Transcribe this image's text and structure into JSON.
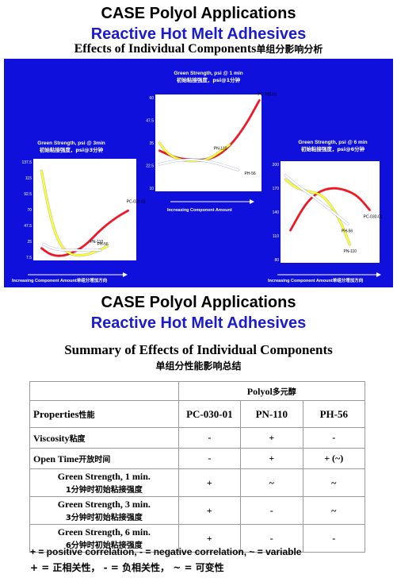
{
  "header": {
    "title": "CASE Polyol Applications",
    "subtitle": "Reactive Hot Melt Adhesives",
    "effects_en": "Effects of Individual  Components",
    "effects_cn": "单组分影响分析"
  },
  "colors": {
    "panel_bg": "#1010dd",
    "plot_bg": "#ffffff",
    "pc": "#ff1010",
    "pn": "#ffff20",
    "ph": "#ffffff"
  },
  "chart_data": [
    {
      "type": "line",
      "title": "Green Strength, psi @ 3min",
      "title_cn": "初始粘接强度，psi@3分钟",
      "xlabel": "Increasing Component Amount",
      "xlabel_cn": "单组分增加方向",
      "yticks": [
        "137.5",
        "115",
        "92.5",
        "70",
        "47.5",
        "25",
        "7.5"
      ],
      "series": [
        {
          "name": "PC-030-01",
          "color": "#ff1010",
          "points": [
            [
              0.08,
              0.12
            ],
            [
              0.16,
              0.06
            ],
            [
              0.25,
              0.04
            ],
            [
              0.35,
              0.06
            ],
            [
              0.5,
              0.14
            ],
            [
              0.65,
              0.3
            ],
            [
              0.8,
              0.42
            ],
            [
              0.92,
              0.49
            ]
          ]
        },
        {
          "name": "PN-110",
          "color": "#ffff20",
          "points": [
            [
              0.08,
              0.88
            ],
            [
              0.13,
              0.6
            ],
            [
              0.2,
              0.3
            ],
            [
              0.28,
              0.12
            ],
            [
              0.38,
              0.05
            ],
            [
              0.5,
              0.05
            ],
            [
              0.62,
              0.09
            ],
            [
              0.72,
              0.14
            ]
          ]
        },
        {
          "name": "PH-56",
          "color": "#ffffff",
          "points": [
            [
              0.1,
              0.16
            ],
            [
              0.2,
              0.11
            ],
            [
              0.32,
              0.1
            ],
            [
              0.45,
              0.1
            ],
            [
              0.55,
              0.1
            ],
            [
              0.65,
              0.1
            ]
          ]
        }
      ]
    },
    {
      "type": "line",
      "title": "Green Strength, psi @ 1 min",
      "title_cn": "初始粘接强度，psi@1分钟",
      "xlabel": "Increasing Component Amount",
      "xlabel_cn": "",
      "yticks": [
        "60",
        "47.5",
        "35",
        "22.5",
        "10"
      ],
      "series": [
        {
          "name": "PC-030-01",
          "color": "#ff1010",
          "points": [
            [
              0.04,
              0.42
            ],
            [
              0.2,
              0.34
            ],
            [
              0.4,
              0.32
            ],
            [
              0.55,
              0.34
            ],
            [
              0.7,
              0.46
            ],
            [
              0.85,
              0.68
            ],
            [
              0.98,
              0.94
            ]
          ]
        },
        {
          "name": "PN-110",
          "color": "#ffff20",
          "points": [
            [
              0.04,
              0.5
            ],
            [
              0.12,
              0.38
            ],
            [
              0.25,
              0.32
            ],
            [
              0.38,
              0.31
            ],
            [
              0.5,
              0.33
            ],
            [
              0.6,
              0.4
            ],
            [
              0.7,
              0.48
            ]
          ]
        },
        {
          "name": "PH-56",
          "color": "#ffffff",
          "points": [
            [
              0.04,
              0.28
            ],
            [
              0.2,
              0.32
            ],
            [
              0.38,
              0.33
            ],
            [
              0.55,
              0.3
            ],
            [
              0.7,
              0.25
            ],
            [
              0.78,
              0.22
            ]
          ]
        }
      ]
    },
    {
      "type": "line",
      "title": "Green Strength, psi @ 6 min",
      "title_cn": "初始粘接强度，psi@6分钟",
      "xlabel": "Increasing Component Amount",
      "xlabel_cn": "单组分增加方向",
      "yticks": [
        "200",
        "170",
        "140",
        "110",
        "80"
      ],
      "series": [
        {
          "name": "PC-030-01",
          "color": "#ff1010",
          "points": [
            [
              0.1,
              0.32
            ],
            [
              0.25,
              0.58
            ],
            [
              0.38,
              0.7
            ],
            [
              0.52,
              0.74
            ],
            [
              0.65,
              0.72
            ],
            [
              0.78,
              0.66
            ],
            [
              0.9,
              0.52
            ]
          ]
        },
        {
          "name": "PN-110",
          "color": "#ffff20",
          "points": [
            [
              0.05,
              0.82
            ],
            [
              0.15,
              0.74
            ],
            [
              0.28,
              0.7
            ],
            [
              0.4,
              0.68
            ],
            [
              0.5,
              0.58
            ],
            [
              0.6,
              0.42
            ],
            [
              0.7,
              0.18
            ]
          ]
        },
        {
          "name": "PH-56",
          "color": "#ffffff",
          "points": [
            [
              0.05,
              0.86
            ],
            [
              0.18,
              0.75
            ],
            [
              0.32,
              0.66
            ],
            [
              0.45,
              0.56
            ],
            [
              0.58,
              0.46
            ],
            [
              0.68,
              0.38
            ]
          ]
        }
      ]
    }
  ],
  "summary": {
    "title": "CASE Polyol Applications",
    "subtitle": "Reactive Hot Melt Adhesives",
    "heading": "Summary  of Effects of Individual  Components",
    "heading_cn": "单组分性能影响总结",
    "table": {
      "polyol_en": "Polyol",
      "polyol_cn": "多元醇",
      "properties_en": "Properties",
      "properties_cn": "性能",
      "cols": [
        "PC-030-01",
        "PN-110",
        "PH-56"
      ],
      "rows": [
        {
          "en": "Viscosity",
          "cn": "粘度",
          "vals": [
            "-",
            "+",
            "-"
          ]
        },
        {
          "en": "Open  Time",
          "cn": "开放时间",
          "vals": [
            "-",
            "+",
            "+ (~)"
          ]
        },
        {
          "en": "Green Strength, 1 min.",
          "cn": "1分钟时初始粘接强度",
          "vals": [
            "+",
            "~",
            "~"
          ]
        },
        {
          "en": "Green Strength, 3 min.",
          "cn": "3分钟时初始粘接强度",
          "vals": [
            "+",
            "-",
            "~"
          ]
        },
        {
          "en": "Green Strength, 6 min.",
          "cn": "6分钟时初始粘接强度",
          "vals": [
            "+",
            "-",
            "-"
          ]
        }
      ]
    },
    "legend_en": "+ = positive correlation, - = negative correlation, ~ = variable",
    "legend_cn": "+ = 正相关性，  - = 负相关性，  ~ = 可变性"
  }
}
